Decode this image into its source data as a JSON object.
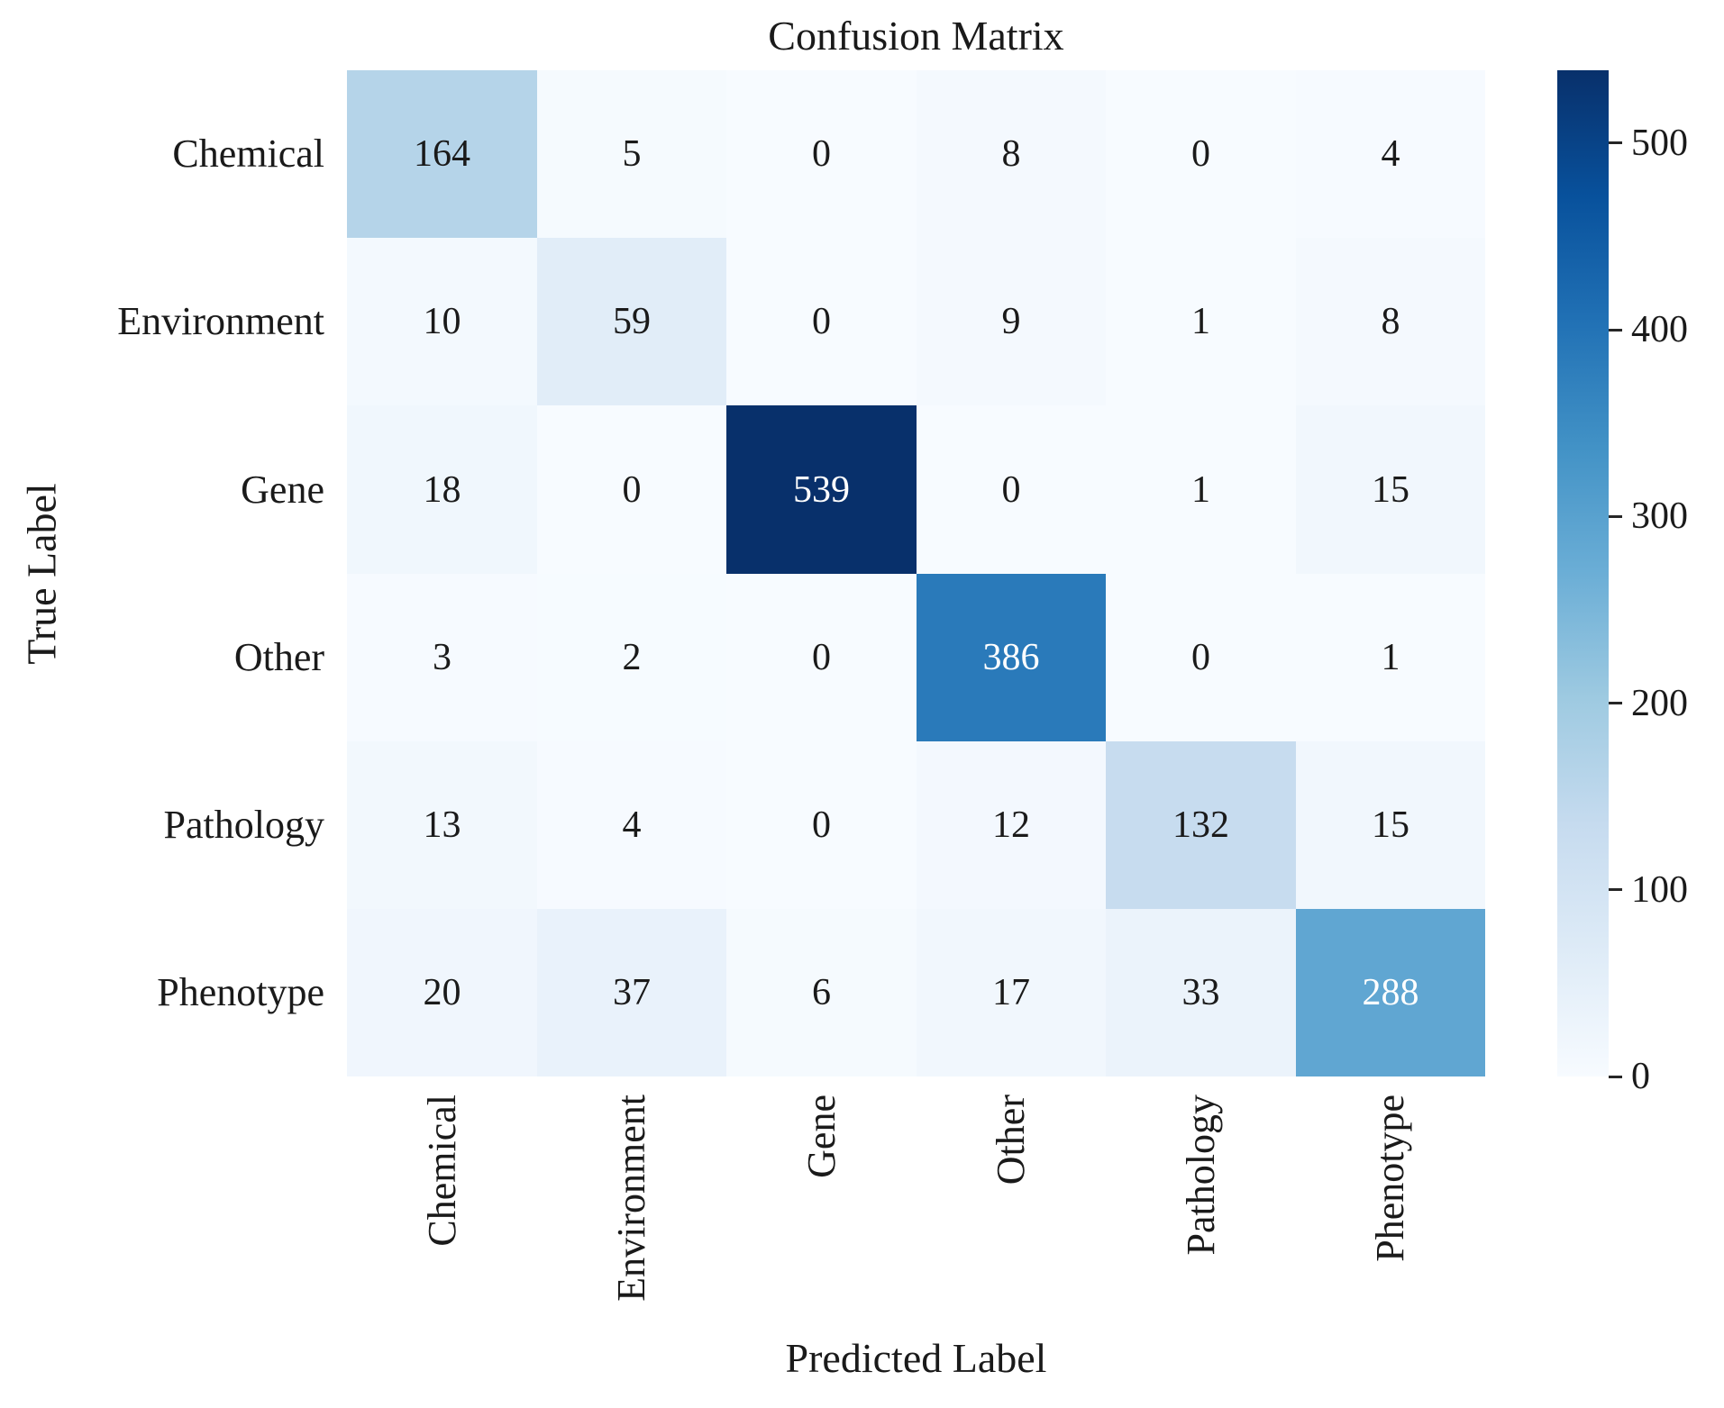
{
  "chart_data": {
    "type": "heatmap",
    "title": "Confusion Matrix",
    "xlabel": "Predicted Label",
    "ylabel": "True Label",
    "categories": [
      "Chemical",
      "Environment",
      "Gene",
      "Other",
      "Pathology",
      "Phenotype"
    ],
    "matrix": [
      [
        164,
        5,
        0,
        8,
        0,
        4
      ],
      [
        10,
        59,
        0,
        9,
        1,
        8
      ],
      [
        18,
        0,
        539,
        0,
        1,
        15
      ],
      [
        3,
        2,
        0,
        386,
        0,
        1
      ],
      [
        13,
        4,
        0,
        12,
        132,
        15
      ],
      [
        20,
        37,
        6,
        17,
        33,
        288
      ]
    ],
    "vmin": 0,
    "vmax": 539,
    "colorbar_ticks": [
      0,
      100,
      200,
      300,
      400,
      500
    ],
    "colormap": "Blues",
    "colormap_stops": [
      "#f7fbff",
      "#deebf7",
      "#c6dbef",
      "#9ecae1",
      "#6baed6",
      "#4292c6",
      "#2171b5",
      "#08519c",
      "#08306b"
    ],
    "annotation_color_dark": "#1a1a1a",
    "annotation_color_light": "#ffffff",
    "tick_color": "#262626",
    "grid": false,
    "legend_position": "right-colorbar"
  }
}
